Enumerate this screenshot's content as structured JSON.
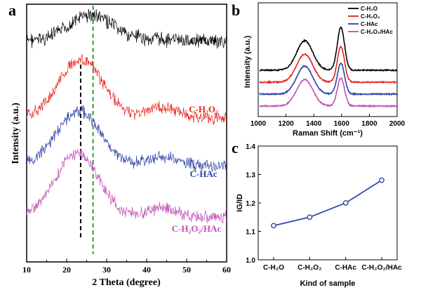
{
  "panels": {
    "a": "a",
    "b": "b",
    "c": "c"
  },
  "chart_data": [
    {
      "panel": "a",
      "type": "line",
      "xlabel": "2 Theta (degree)",
      "ylabel": "Intensity (a.u.)",
      "xlim": [
        10,
        60
      ],
      "xticks": [
        "10",
        "20",
        "30",
        "40",
        "50",
        "60"
      ],
      "reference_lines": [
        {
          "x": 23.5,
          "color": "#000000",
          "style": "dashed",
          "series_span": [
            1,
            3
          ]
        },
        {
          "x": 26.6,
          "color": "#2e9e3a",
          "style": "dashed",
          "series_span": [
            0,
            3
          ]
        }
      ],
      "series": [
        {
          "name": "C-H₂O",
          "color": "#000000",
          "baseline": 0.2,
          "peak_x": 26,
          "peak_h": 0.14,
          "shoulder_x": 43,
          "shoulder_h": 0.01,
          "noise": 0.06
        },
        {
          "name": "C-H₂O₂",
          "color": "#e8231e",
          "baseline": 0.62,
          "peak_x": 23.5,
          "peak_h": 0.32,
          "shoulder_x": 44,
          "shoulder_h": 0.06,
          "noise": 0.05
        },
        {
          "name": "C-HAc",
          "color": "#2d42a8",
          "baseline": 0.88,
          "peak_x": 23,
          "peak_h": 0.3,
          "shoulder_x": 44,
          "shoulder_h": 0.05,
          "noise": 0.05
        },
        {
          "name": "C-H₂O₂/HAc",
          "color": "#c04fb5",
          "baseline": 1.16,
          "peak_x": 22.5,
          "peak_h": 0.35,
          "shoulder_x": 44,
          "shoulder_h": 0.05,
          "noise": 0.05
        }
      ]
    },
    {
      "panel": "b",
      "type": "line",
      "xlabel": "Raman Shift (cm⁻¹)",
      "ylabel": "Intensity (a.u.)",
      "xlim": [
        1000,
        2000
      ],
      "xticks": [
        "1000",
        "1200",
        "1400",
        "1600",
        "1800",
        "2000"
      ],
      "legend_position": "top-right",
      "series": [
        {
          "name": "C-H₂O",
          "color": "#000000",
          "offset": 3,
          "d_height": 1.0,
          "g_height": 1.45
        },
        {
          "name": "C-H₂O₂",
          "color": "#e8231e",
          "offset": 2,
          "d_height": 0.95,
          "g_height": 1.2
        },
        {
          "name": "C-HAc",
          "color": "#2d42a8",
          "offset": 1,
          "d_height": 0.95,
          "g_height": 1.05
        },
        {
          "name": "C-H₂O₂/HAc",
          "color": "#c04fb5",
          "offset": 0,
          "d_height": 0.9,
          "g_height": 0.95
        }
      ]
    },
    {
      "panel": "c",
      "type": "line",
      "xlabel": "Kind of sample",
      "ylabel": "IG/ID",
      "ylim": [
        1.0,
        1.4
      ],
      "yticks": [
        "1.0",
        "1.1",
        "1.2",
        "1.3",
        "1.4"
      ],
      "categories": [
        "C-H₂O",
        "C-H₂O₂",
        "C-HAc",
        "C-H₂O₂/HAc"
      ],
      "values": [
        1.12,
        1.15,
        1.2,
        1.28
      ],
      "color": "#3447a8"
    }
  ]
}
